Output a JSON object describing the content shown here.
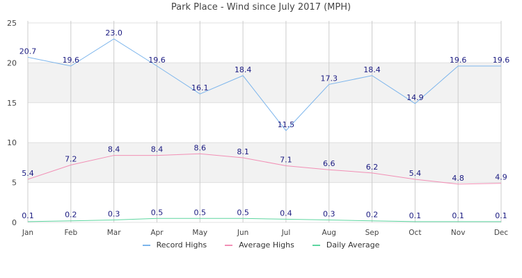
{
  "chart_data": {
    "type": "line",
    "title": "Park Place - Wind since July 2017 (MPH)",
    "xlabel": "",
    "ylabel": "",
    "categories": [
      "Jan",
      "Feb",
      "Mar",
      "Apr",
      "May",
      "Jun",
      "Jul",
      "Aug",
      "Sep",
      "Oct",
      "Nov",
      "Dec"
    ],
    "series": [
      {
        "name": "Record Highs",
        "color": "#7cb5ec",
        "values": [
          20.7,
          19.6,
          23.0,
          19.6,
          16.1,
          18.4,
          11.5,
          17.3,
          18.4,
          14.9,
          19.6,
          19.6
        ]
      },
      {
        "name": "Average Highs",
        "color": "#f28fb5",
        "values": [
          5.4,
          7.2,
          8.4,
          8.4,
          8.6,
          8.1,
          7.1,
          6.6,
          6.2,
          5.4,
          4.8,
          4.9
        ]
      },
      {
        "name": "Daily Average",
        "color": "#5ed6a0",
        "values": [
          0.1,
          0.2,
          0.3,
          0.5,
          0.5,
          0.5,
          0.4,
          0.3,
          0.2,
          0.1,
          0.1,
          0.1
        ]
      }
    ],
    "ylim": [
      0,
      25
    ],
    "yticks": [
      0,
      5,
      10,
      15,
      20,
      25
    ],
    "grid": true,
    "alternate_bands": true,
    "legend_position": "bottom",
    "data_labels": true
  },
  "title": "Park Place - Wind since July 2017 (MPH)",
  "legend": {
    "items": [
      {
        "label": "Record Highs",
        "color": "#7cb5ec"
      },
      {
        "label": "Average Highs",
        "color": "#f28fb5"
      },
      {
        "label": "Daily Average",
        "color": "#5ed6a0"
      }
    ]
  }
}
